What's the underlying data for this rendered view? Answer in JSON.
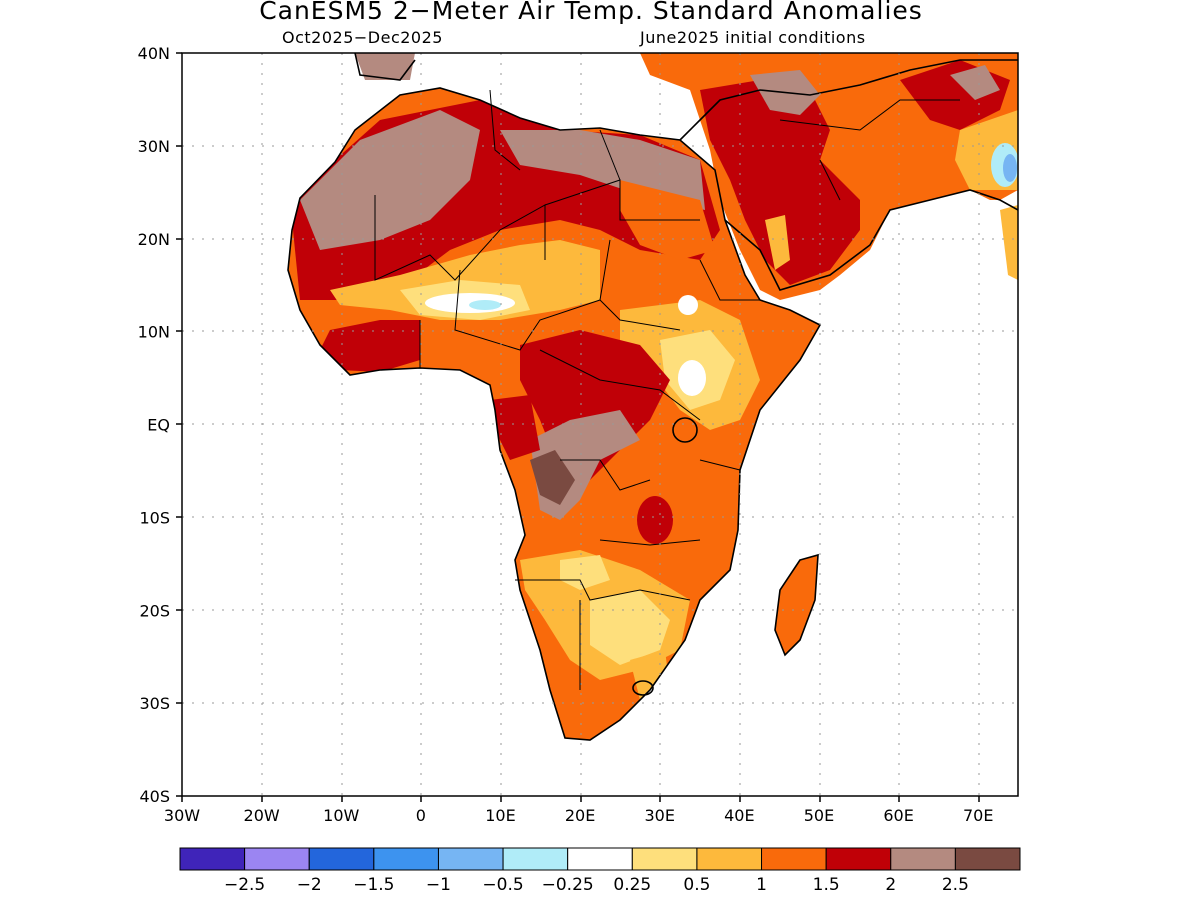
{
  "title": "CanESM5 2−Meter Air Temp. Standard Anomalies",
  "period": "Oct2025−Dec2025",
  "init": "June2025 initial conditions",
  "lat_labels": [
    "40N",
    "30N",
    "20N",
    "10N",
    "EQ",
    "10S",
    "20S",
    "30S",
    "40S"
  ],
  "lat_values": [
    40,
    30,
    20,
    10,
    0,
    -10,
    -20,
    -30,
    -40
  ],
  "lon_labels": [
    "30W",
    "20W",
    "10W",
    "0",
    "10E",
    "20E",
    "30E",
    "40E",
    "50E",
    "60E",
    "70E"
  ],
  "lon_values": [
    -30,
    -20,
    -10,
    0,
    10,
    20,
    30,
    40,
    50,
    60,
    70
  ],
  "colorbar": {
    "colors": [
      "#3f24b9",
      "#9b85f2",
      "#2366dc",
      "#3d93ef",
      "#76b5f3",
      "#b0ecf8",
      "#ffffff",
      "#fedf7c",
      "#fdb93c",
      "#f96a0b",
      "#c00007",
      "#b48a80",
      "#7a4a41"
    ],
    "labels": [
      "−2.5",
      "−2",
      "−1.5",
      "−1",
      "−0.5",
      "−0.25",
      "0.25",
      "0.5",
      "1",
      "1.5",
      "2",
      "2.5"
    ]
  }
}
